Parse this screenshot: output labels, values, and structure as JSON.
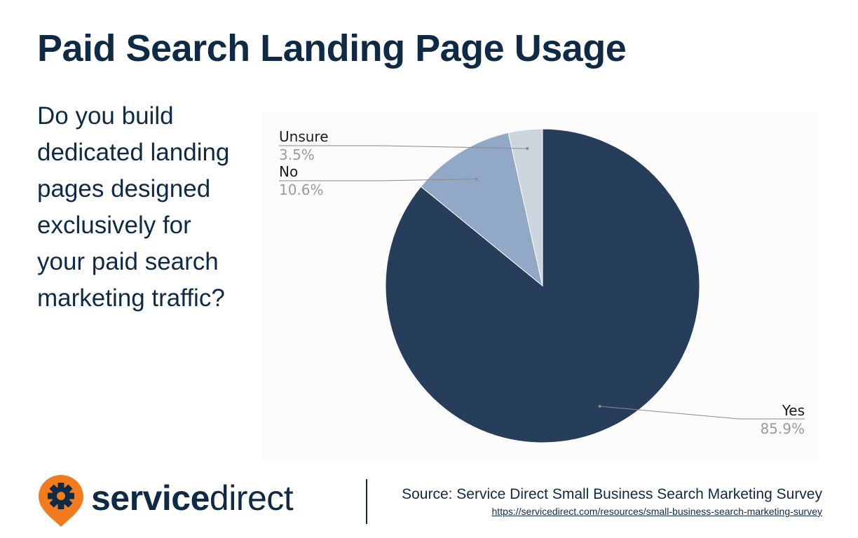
{
  "title": "Paid Search Landing Page Usage",
  "question": "Do you build dedicated landing pages designed exclusively for your paid search marketing traffic?",
  "chart_data": {
    "type": "pie",
    "start_angle_deg": 0,
    "direction": "clockwise",
    "slices": [
      {
        "label": "Yes",
        "value": 85.9,
        "value_label": "85.9%",
        "color": "#263e5a"
      },
      {
        "label": "No",
        "value": 10.6,
        "value_label": "10.6%",
        "color": "#91a9c6"
      },
      {
        "label": "Unsure",
        "value": 3.5,
        "value_label": "3.5%",
        "color": "#ccd4de"
      }
    ],
    "label_color": "#1a1a1a",
    "value_color": "#9b9b9b"
  },
  "logo": {
    "word1": "service",
    "word2": "direct",
    "icon": "gear-pin-icon",
    "icon_color": "#f07c1f"
  },
  "source": {
    "text": "Source: Service Direct Small Business Search Marketing Survey",
    "url": "https://servicedirect.com/resources/small-business-search-marketing-survey"
  }
}
